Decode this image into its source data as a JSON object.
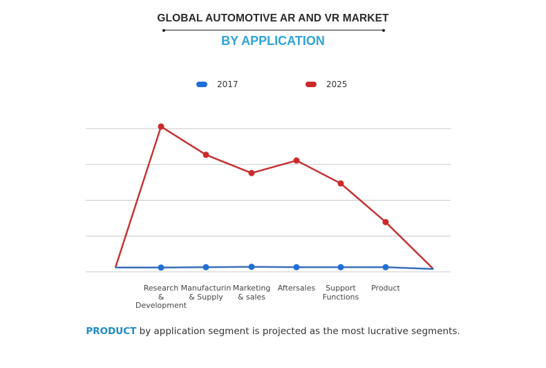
{
  "header": {
    "title": "GLOBAL AUTOMOTIVE AR AND VR MARKET",
    "subtitle": "BY APPLICATION"
  },
  "footer": {
    "highlight": "PRODUCT",
    "text": " by application segment is projected as the most lucrative segments."
  },
  "colors": {
    "title": "#2b2b2b",
    "subtitle": "#2ea3dc",
    "series_2017": "#1f6fd6",
    "series_2025": "#cc2a2a",
    "grid": "#c8c8c8",
    "footer_highlight": "#1c8ac9"
  },
  "chart_data": {
    "type": "line",
    "title": "GLOBAL AUTOMOTIVE AR AND VR MARKET BY APPLICATION",
    "xlabel": "",
    "ylabel": "",
    "categories": [
      "Research\n&\nDevelopment",
      "Manufacturin\n& Supply",
      "Marketing\n& sales",
      "Aftersales",
      "Support\nFunctions",
      "Product"
    ],
    "y_unit_note": "No y-axis tick labels shown; values in gridline units (0 = baseline, 4 = top gridline)",
    "ylim": [
      0,
      4
    ],
    "grid": true,
    "gridline_count": 5,
    "legend": {
      "position": "top-center",
      "entries": [
        "2017",
        "2025"
      ]
    },
    "line_start_value": {
      "2017": 0.12,
      "2025": 0.12
    },
    "line_end_value": {
      "2017": 0.08,
      "2025": 0.08
    },
    "series": [
      {
        "name": "2017",
        "values": [
          0.12,
          0.13,
          0.14,
          0.13,
          0.13,
          0.13
        ]
      },
      {
        "name": "2025",
        "values": [
          4.06,
          3.27,
          2.76,
          3.11,
          2.47,
          1.39
        ]
      }
    ]
  }
}
